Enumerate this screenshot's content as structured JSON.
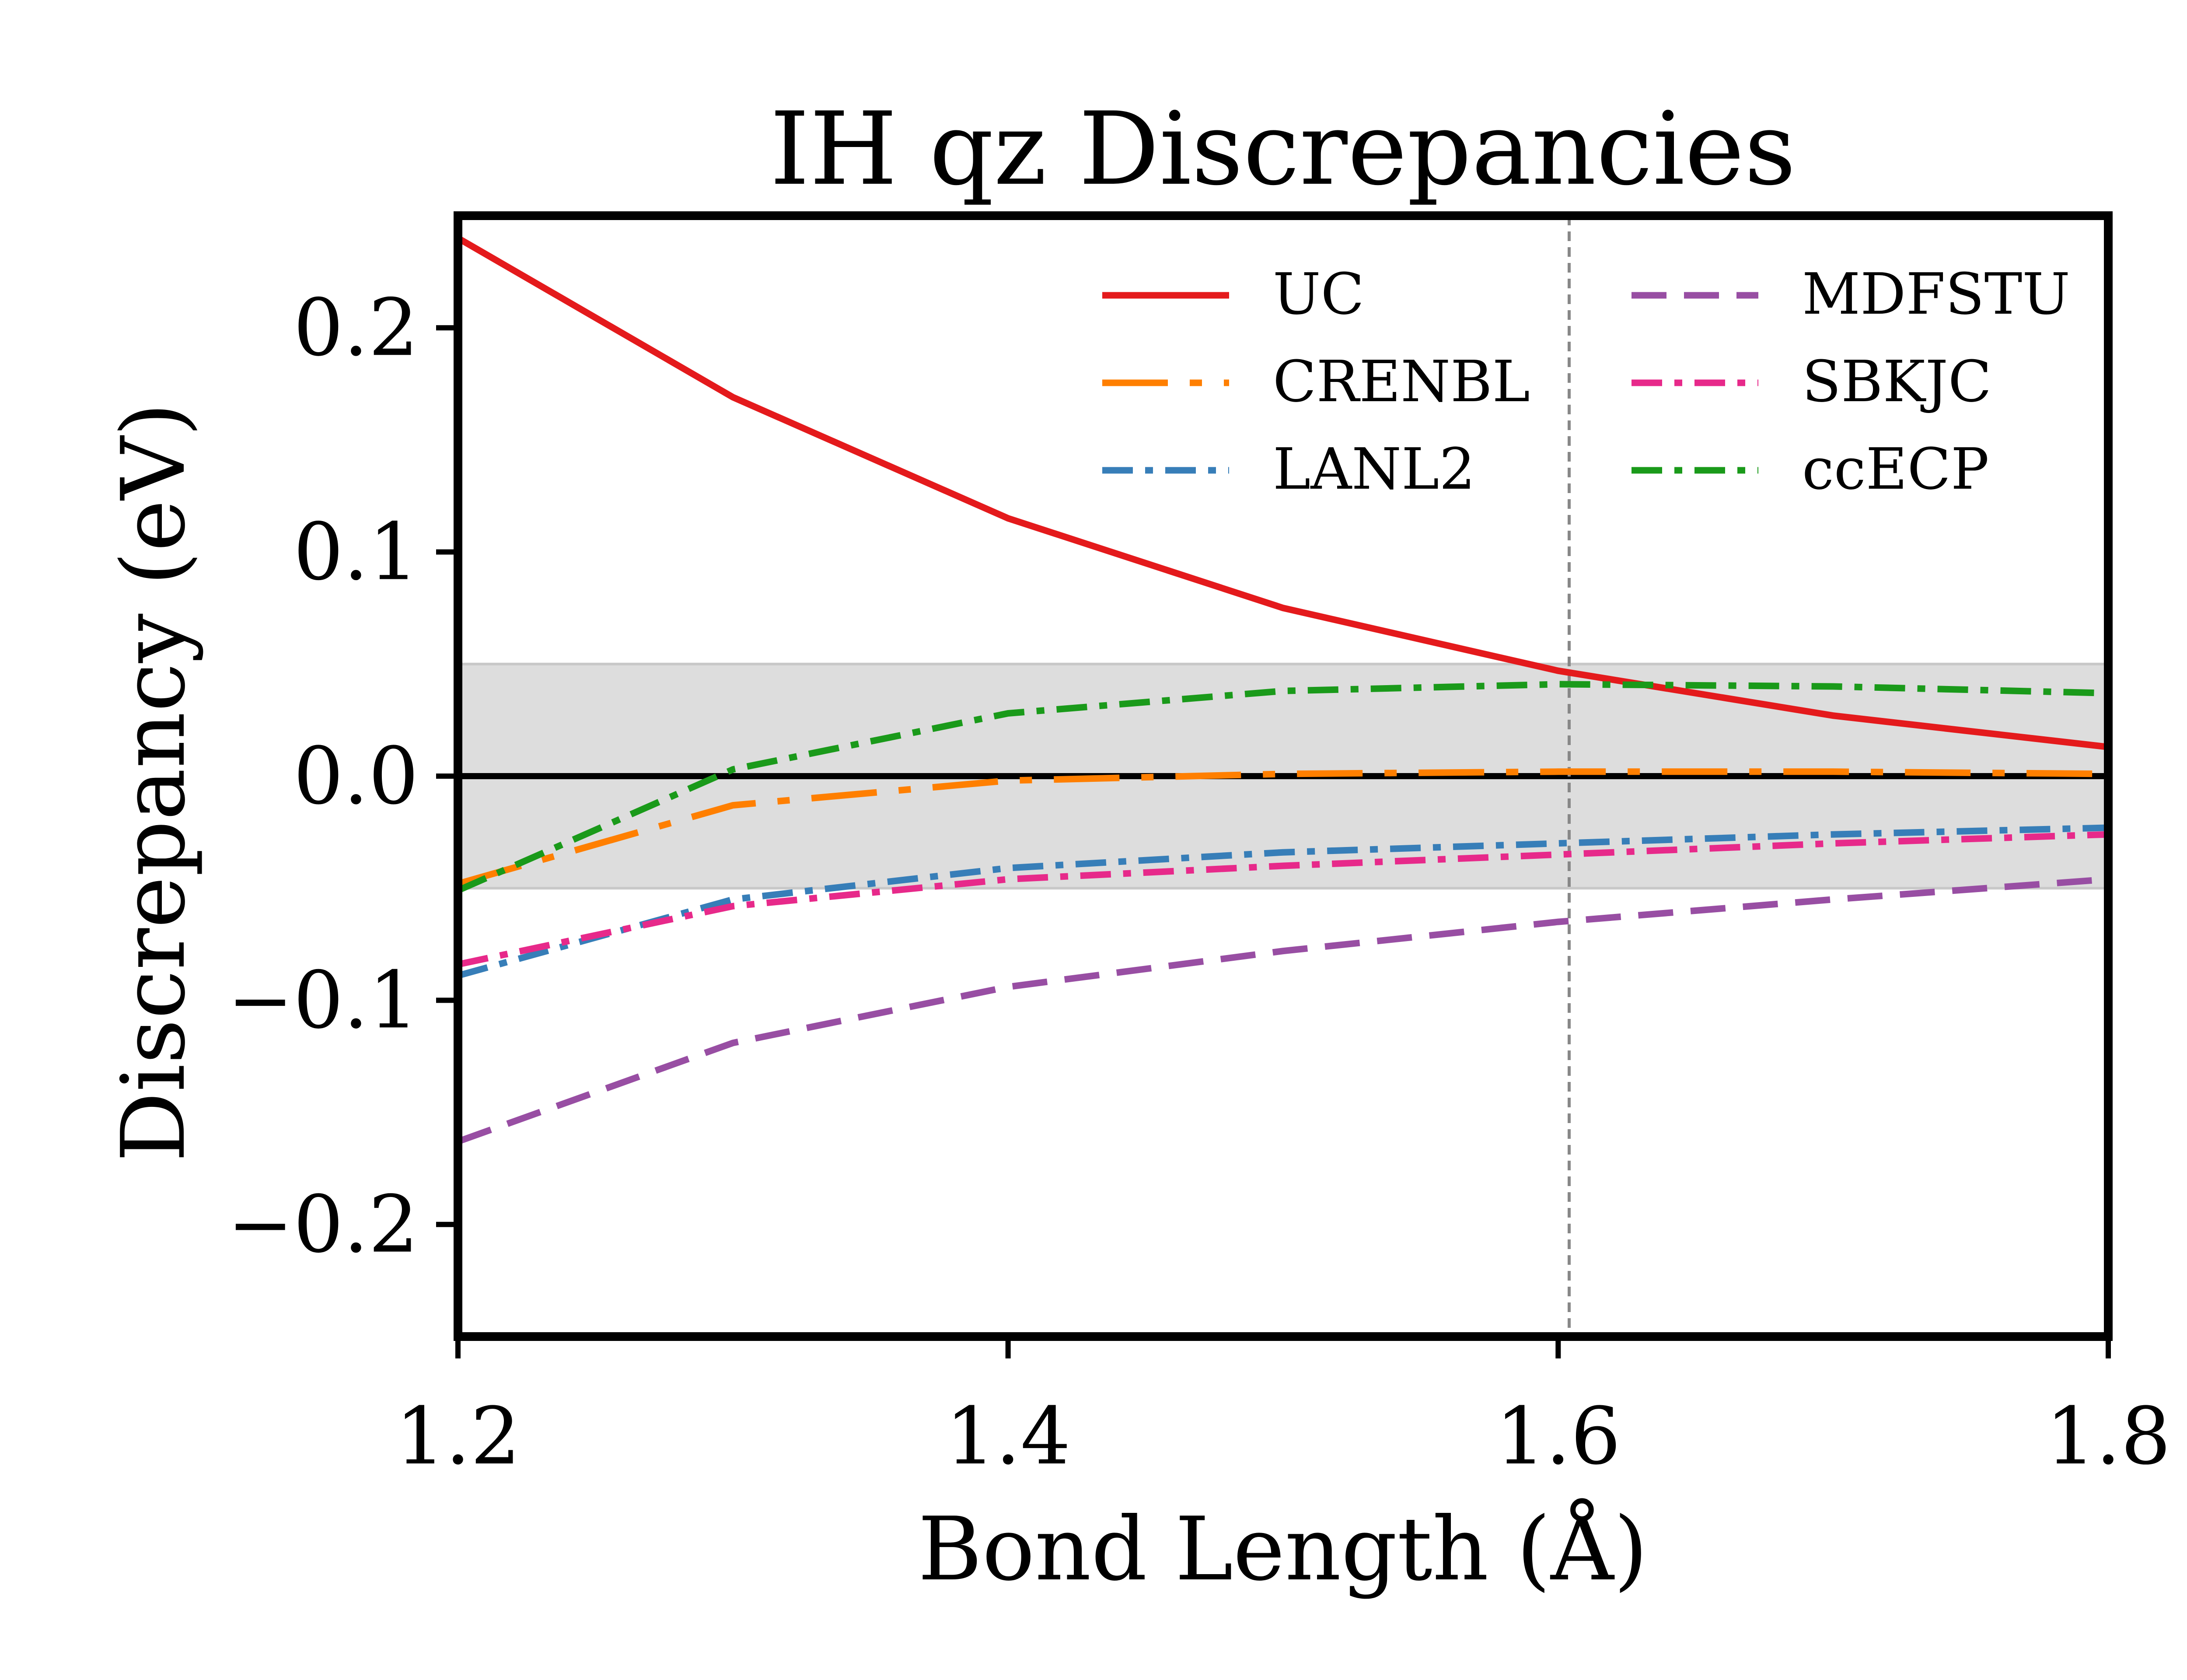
{
  "chart_data": {
    "type": "line",
    "title": "IH qz Discrepancies",
    "xlabel": "Bond Length (Å)",
    "ylabel": "Discrepancy (eV)",
    "xlim": [
      1.2,
      1.8
    ],
    "ylim": [
      -0.25,
      0.25
    ],
    "xticks": [
      1.2,
      1.4,
      1.6,
      1.8
    ],
    "xtick_labels": [
      "1.2",
      "1.4",
      "1.6",
      "1.8"
    ],
    "yticks": [
      -0.2,
      -0.1,
      0.0,
      0.1,
      0.2
    ],
    "ytick_labels": [
      "−0.2",
      "−0.1",
      "0.0",
      "0.1",
      "0.2"
    ],
    "grid": false,
    "legend_position": "top-right",
    "shaded_band": {
      "y_min": -0.05,
      "y_max": 0.05,
      "color": "#dddddd"
    },
    "zero_line": {
      "y": 0.0,
      "color": "#000000"
    },
    "reference_line": {
      "x": 1.604,
      "color": "#888888",
      "style": "dashed"
    },
    "x": [
      1.2,
      1.3,
      1.4,
      1.5,
      1.6,
      1.7,
      1.8
    ],
    "series": [
      {
        "name": "UC",
        "color": "#e41a1c",
        "dash": "solid",
        "values": [
          0.24,
          0.169,
          0.115,
          0.075,
          0.047,
          0.027,
          0.013
        ]
      },
      {
        "name": "CRENBL",
        "color": "#ff7f00",
        "dash": "long-dash-dot",
        "values": [
          -0.048,
          -0.013,
          -0.002,
          0.001,
          0.002,
          0.002,
          0.001
        ]
      },
      {
        "name": "LANL2",
        "color": "#377eb8",
        "dash": "dash-dot",
        "values": [
          -0.089,
          -0.055,
          -0.041,
          -0.034,
          -0.03,
          -0.026,
          -0.023
        ]
      },
      {
        "name": "MDFSTU",
        "color": "#984ea3",
        "dash": "dashed",
        "values": [
          -0.163,
          -0.119,
          -0.094,
          -0.078,
          -0.065,
          -0.055,
          -0.046
        ]
      },
      {
        "name": "SBKJC",
        "color": "#e7298a",
        "dash": "dash-dot",
        "values": [
          -0.084,
          -0.058,
          -0.046,
          -0.04,
          -0.035,
          -0.03,
          -0.026
        ]
      },
      {
        "name": "ccECP",
        "color": "#1a9a1a",
        "dash": "dash-dot",
        "values": [
          -0.051,
          0.003,
          0.028,
          0.038,
          0.041,
          0.04,
          0.037
        ]
      }
    ]
  }
}
